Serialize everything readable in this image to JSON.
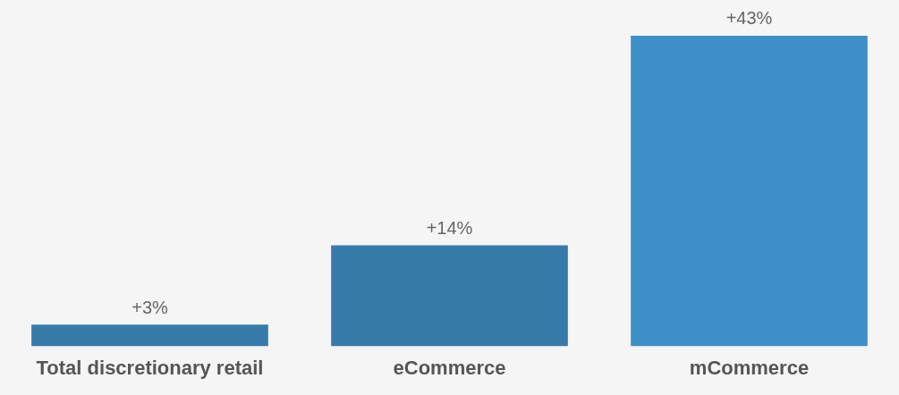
{
  "chart_data": {
    "type": "bar",
    "categories": [
      "Total discretionary retail",
      "eCommerce",
      "mCommerce"
    ],
    "values": [
      3,
      14,
      43
    ],
    "colors": [
      "#377bab",
      "#377bab",
      "#3d8fc8"
    ],
    "value_labels": [
      "+3%",
      "+14%",
      "+43%"
    ],
    "grid": false,
    "legend": false
  }
}
